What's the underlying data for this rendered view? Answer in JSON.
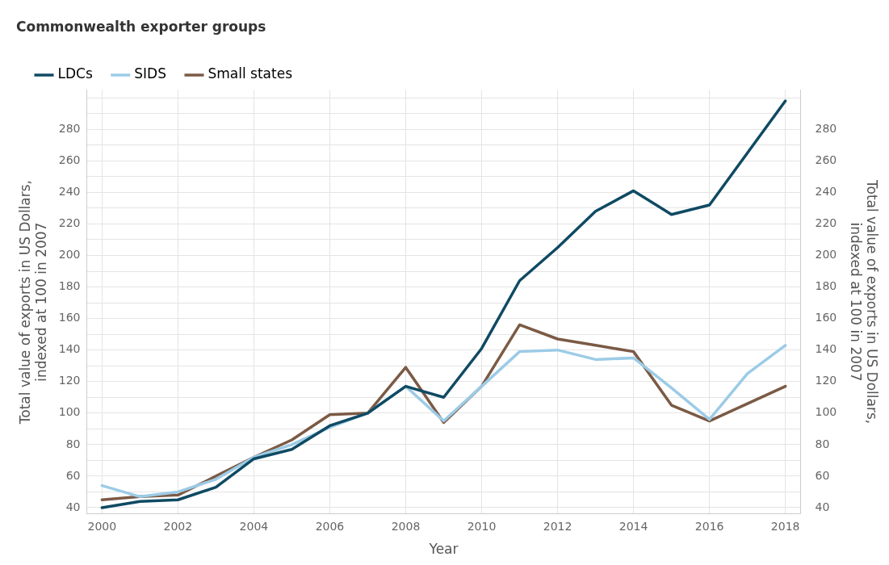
{
  "chart_data": {
    "type": "line",
    "title": "Commonwealth exporter groups",
    "xlabel": "Year",
    "ylabel": "Total value of exports in US Dollars, indexed at 100 in 2007",
    "y2label": "Total value of exports in US Dollars, indexed at 100 in 2007",
    "x": [
      2000,
      2001,
      2002,
      2003,
      2004,
      2005,
      2006,
      2007,
      2008,
      2009,
      2010,
      2011,
      2012,
      2013,
      2014,
      2015,
      2016,
      2017,
      2018
    ],
    "series": [
      {
        "name": "LDCs",
        "color": "#0f4a63",
        "values": [
          40,
          44,
          45,
          53,
          71,
          77,
          92,
          100,
          117,
          110,
          141,
          184,
          205,
          228,
          241,
          226,
          232,
          265,
          298
        ]
      },
      {
        "name": "SIDS",
        "color": "#9ccbe6",
        "values": [
          54,
          47,
          50,
          58,
          72,
          80,
          91,
          100,
          117,
          95,
          117,
          139,
          140,
          134,
          135,
          116,
          96,
          125,
          143
        ]
      },
      {
        "name": "Small states",
        "color": "#7b5a45",
        "values": [
          45,
          47,
          48,
          60,
          72,
          83,
          99,
          100,
          129,
          94,
          117,
          156,
          147,
          143,
          139,
          105,
          95,
          106,
          117
        ]
      }
    ],
    "xlim": [
      1999.6,
      2018.4
    ],
    "xticks": [
      2000,
      2002,
      2004,
      2006,
      2008,
      2010,
      2012,
      2014,
      2016,
      2018
    ],
    "ylim": [
      36,
      305
    ],
    "yticks": [
      40,
      {
        "value": 50,
        "label": null
      },
      60,
      {
        "value": 70,
        "label": null
      },
      80,
      {
        "value": 90,
        "label": null
      },
      100,
      {
        "value": 110,
        "label": null
      },
      120,
      {
        "value": 130,
        "label": null
      },
      140,
      {
        "value": 150,
        "label": null
      },
      160,
      {
        "value": 170,
        "label": null
      },
      180,
      {
        "value": 190,
        "label": null
      },
      200,
      {
        "value": 210,
        "label": null
      },
      220,
      {
        "value": 230,
        "label": null
      },
      240,
      {
        "value": 250,
        "label": null
      },
      260,
      {
        "value": 270,
        "label": null
      },
      280,
      {
        "value": 290,
        "label": null
      },
      {
        "value": 300,
        "label": null
      }
    ],
    "y2lim": [
      36,
      305
    ],
    "y2ticks": [
      40,
      60,
      80,
      100,
      120,
      140,
      160,
      180,
      200,
      220,
      240,
      260,
      280
    ],
    "grid": true,
    "legend": "top left",
    "marker": "none",
    "line_style": "solid"
  }
}
